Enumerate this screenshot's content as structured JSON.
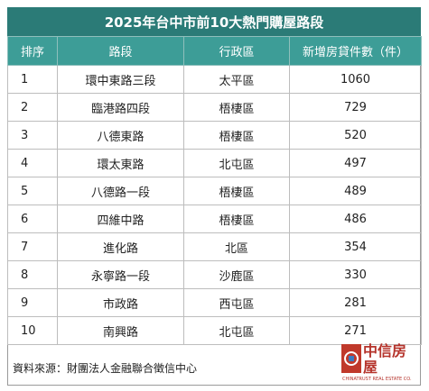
{
  "title": "2025年台中市前10大熱門購屋路段",
  "table": {
    "headers": [
      "排序",
      "路段",
      "行政區",
      "新增房貸件數（件）"
    ],
    "rows": [
      [
        1,
        "環中東路三段",
        "太平區",
        1060
      ],
      [
        2,
        "臨港路四段",
        "梧棲區",
        729
      ],
      [
        3,
        "八德東路",
        "梧棲區",
        520
      ],
      [
        4,
        "環太東路",
        "北屯區",
        497
      ],
      [
        5,
        "八德路一段",
        "梧棲區",
        489
      ],
      [
        6,
        "四維中路",
        "梧棲區",
        486
      ],
      [
        7,
        "進化路",
        "北區",
        354
      ],
      [
        8,
        "永寧路一段",
        "沙鹿區",
        330
      ],
      [
        9,
        "市政路",
        "西屯區",
        281
      ],
      [
        10,
        "南興路",
        "北屯區",
        271
      ]
    ]
  },
  "source": "資料來源：財團法人金融聯合徵信中心",
  "logo": {
    "name": "中信房屋",
    "english": "CHINATRUST REAL ESTATE CO."
  }
}
